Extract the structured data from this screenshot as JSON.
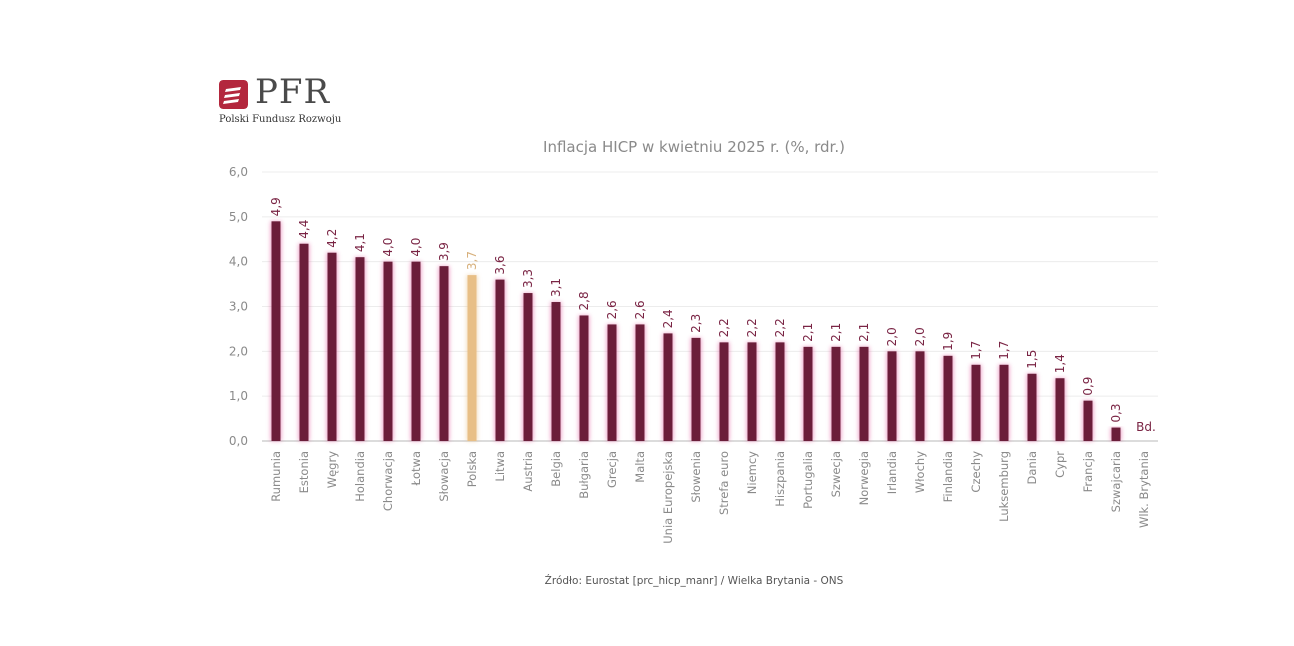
{
  "logo": {
    "text": "PFR",
    "subtitle": "Polski Fundusz Rozwoju"
  },
  "source": "Źródło: Eurostat [prc_hicp_manr] / Wielka Brytania - ONS",
  "colors": {
    "bar": "#6b1e3a",
    "bar_glow": "#e0559a",
    "highlight": "#e8bf86",
    "value_text": "#7a2444",
    "highlight_text": "#d7b07c",
    "grid": "#ececec",
    "axis": "#b8b8b8"
  },
  "chart_data": {
    "type": "bar",
    "title": "Inflacja HICP w kwietniu 2025 r. (%, rdr.)",
    "xlabel": "",
    "ylabel": "",
    "ylim": [
      0,
      6
    ],
    "yticks": [
      "0,0",
      "1,0",
      "2,0",
      "3,0",
      "4,0",
      "5,0",
      "6,0"
    ],
    "grid": true,
    "categories": [
      "Rumunia",
      "Estonia",
      "Węgry",
      "Holandia",
      "Chorwacja",
      "Łotwa",
      "Słowacja",
      "Polska",
      "Litwa",
      "Austria",
      "Belgia",
      "Bułgaria",
      "Grecja",
      "Malta",
      "Unia Europejska",
      "Słowenia",
      "Strefa euro",
      "Niemcy",
      "Hiszpania",
      "Portugalia",
      "Szwecja",
      "Norwegia",
      "Irlandia",
      "Włochy",
      "Finlandia",
      "Czechy",
      "Luksemburg",
      "Dania",
      "Cypr",
      "Francja",
      "Szwajcaria",
      "Wlk. Brytania"
    ],
    "values": [
      4.9,
      4.4,
      4.2,
      4.1,
      4.0,
      4.0,
      3.9,
      3.7,
      3.6,
      3.3,
      3.1,
      2.8,
      2.6,
      2.6,
      2.4,
      2.3,
      2.2,
      2.2,
      2.2,
      2.1,
      2.1,
      2.1,
      2.0,
      2.0,
      1.9,
      1.7,
      1.7,
      1.5,
      1.4,
      0.9,
      0.3,
      null
    ],
    "labels": [
      "4,9",
      "4,4",
      "4,2",
      "4,1",
      "4,0",
      "4,0",
      "3,9",
      "3,7",
      "3,6",
      "3,3",
      "3,1",
      "2,8",
      "2,6",
      "2,6",
      "2,4",
      "2,3",
      "2,2",
      "2,2",
      "2,2",
      "2,1",
      "2,1",
      "2,1",
      "2,0",
      "2,0",
      "1,9",
      "1,7",
      "1,7",
      "1,5",
      "1,4",
      "0,9",
      "0,3",
      "Bd."
    ],
    "highlight": "Polska"
  }
}
